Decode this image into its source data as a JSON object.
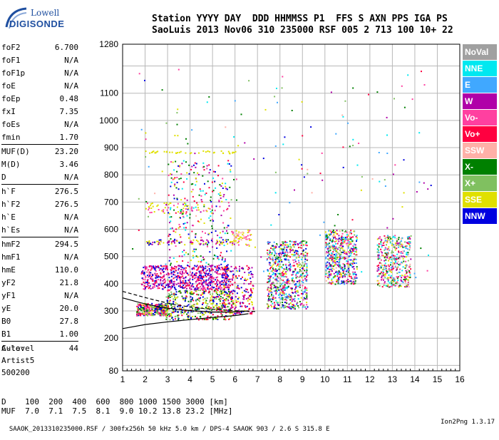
{
  "logo": {
    "line1": "Lowell",
    "line2": "DIGISONDE"
  },
  "header": {
    "labels": "Station YYYY DAY  DDD HHMMSS P1  FFS S AXN PPS IGA PS",
    "values": "SaoLuis 2013 Nov06 310 235000 RSF 005 2 713 100 10+ 22"
  },
  "params": [
    {
      "k": "foF2",
      "v": "6.700"
    },
    {
      "k": "foF1",
      "v": "N/A"
    },
    {
      "k": "foF1p",
      "v": "N/A"
    },
    {
      "k": "foE",
      "v": "N/A"
    },
    {
      "k": "foEp",
      "v": "0.48"
    },
    {
      "k": "fxI",
      "v": "7.35"
    },
    {
      "k": "foEs",
      "v": "N/A"
    },
    {
      "k": "fmin",
      "v": "1.70"
    },
    {
      "k": "MUF(D)",
      "v": "23.20"
    },
    {
      "k": "M(D)",
      "v": "3.46"
    },
    {
      "k": "D",
      "v": "N/A"
    },
    {
      "k": "h`F",
      "v": "276.5"
    },
    {
      "k": "h`F2",
      "v": "276.5"
    },
    {
      "k": "h`E",
      "v": "N/A"
    },
    {
      "k": "h`Es",
      "v": "N/A"
    },
    {
      "k": "hmF2",
      "v": "294.5"
    },
    {
      "k": "hmF1",
      "v": "N/A"
    },
    {
      "k": "hmE",
      "v": "110.0"
    },
    {
      "k": "yF2",
      "v": "21.8"
    },
    {
      "k": "yF1",
      "v": "N/A"
    },
    {
      "k": "yE",
      "v": "20.0"
    },
    {
      "k": "B0",
      "v": "27.8"
    },
    {
      "k": "B1",
      "v": "1.00"
    },
    {
      "k": "C-level",
      "v": "44"
    }
  ],
  "auto": {
    "l1": "Auto:",
    "l2": "Artist5",
    "l3": "500200"
  },
  "dtable": {
    "row1": "D    100  200  400  600  800 1000 1500 3000 [km]",
    "row2": "MUF  7.0  7.1  7.5  8.1  9.0 10.2 13.8 23.2 [MHz]"
  },
  "footer": {
    "left": "SAAOK_2013310235000.RSF / 300fx256h 50 kHz 5.0 km / DPS-4 SAAOK 903 / 2.6 S 315.8 E",
    "version": "Ion2Png 1.3.17"
  },
  "legend": [
    {
      "name": "NoVal",
      "color": "#a0a0a0"
    },
    {
      "name": "NNE",
      "color": "#00e8f0"
    },
    {
      "name": "E",
      "color": "#40a8ff"
    },
    {
      "name": "W",
      "color": "#b000a8"
    },
    {
      "name": "Vo-",
      "color": "#ff40a0"
    },
    {
      "name": "Vo+",
      "color": "#ff0040"
    },
    {
      "name": "SSW",
      "color": "#ffb0a8"
    },
    {
      "name": "X-",
      "color": "#008000"
    },
    {
      "name": "X+",
      "color": "#80c060"
    },
    {
      "name": "SSE",
      "color": "#e0e000"
    },
    {
      "name": "NNW",
      "color": "#0000e0"
    }
  ],
  "chart_data": {
    "type": "scatter",
    "xlim": [
      1,
      16
    ],
    "ylim": [
      80,
      1280
    ],
    "x_ticks": [
      "1",
      "2",
      "3",
      "4",
      "5",
      "6",
      "7",
      "8",
      "9",
      "10",
      "11",
      "12",
      "13",
      "14",
      "15",
      "16"
    ],
    "y_ticks": [
      "1280",
      "1100",
      "1000",
      "900",
      "800",
      "700",
      "600",
      "500",
      "400",
      "300",
      "200",
      "80"
    ],
    "y_tick_values": [
      1280,
      1100,
      1000,
      900,
      800,
      700,
      600,
      500,
      400,
      300,
      200,
      80
    ],
    "grid": true,
    "legend_position": "right",
    "clusters": [
      {
        "x": [
          1.6,
          3.0
        ],
        "y": [
          285,
          330
        ],
        "colors": [
          4,
          5,
          7,
          8,
          9,
          10
        ],
        "n": 320
      },
      {
        "x": [
          2.9,
          5.9
        ],
        "y": [
          270,
          380
        ],
        "colors": [
          7,
          8,
          9,
          5,
          10
        ],
        "n": 420
      },
      {
        "x": [
          1.8,
          5.7
        ],
        "y": [
          380,
          470
        ],
        "colors": [
          3,
          4,
          5,
          10
        ],
        "n": 650
      },
      {
        "x": [
          3.0,
          5.8
        ],
        "y": [
          470,
          860
        ],
        "colors": [
          3,
          4,
          5,
          7,
          9,
          10,
          1
        ],
        "n": 300
      },
      {
        "x": [
          2.0,
          6.0
        ],
        "y": [
          545,
          565
        ],
        "colors": [
          9,
          10,
          3
        ],
        "n": 90
      },
      {
        "x": [
          2.0,
          6.0
        ],
        "y": [
          880,
          890
        ],
        "colors": [
          9
        ],
        "n": 40
      },
      {
        "x": [
          2.0,
          5.0
        ],
        "y": [
          660,
          700
        ],
        "colors": [
          9,
          4
        ],
        "n": 60
      },
      {
        "x": [
          5.4,
          6.8
        ],
        "y": [
          290,
          470
        ],
        "colors": [
          5,
          9,
          10,
          3
        ],
        "n": 220
      },
      {
        "x": [
          5.8,
          6.7
        ],
        "y": [
          540,
          600
        ],
        "colors": [
          6,
          4,
          9
        ],
        "n": 60
      },
      {
        "x": [
          7.4,
          9.2
        ],
        "y": [
          310,
          560
        ],
        "colors": [
          1,
          2,
          3,
          4,
          5,
          7,
          8,
          9,
          10
        ],
        "n": 700
      },
      {
        "x": [
          10.0,
          11.4
        ],
        "y": [
          400,
          600
        ],
        "colors": [
          1,
          2,
          3,
          4,
          5,
          6,
          7,
          8,
          9,
          10
        ],
        "n": 520
      },
      {
        "x": [
          12.3,
          13.8
        ],
        "y": [
          390,
          580
        ],
        "colors": [
          1,
          2,
          3,
          4,
          5,
          6,
          7,
          8,
          9
        ],
        "n": 420
      }
    ],
    "trace_o": [
      [
        1.0,
        348
      ],
      [
        1.8,
        330
      ],
      [
        2.6,
        315
      ],
      [
        3.4,
        306
      ],
      [
        4.2,
        300
      ],
      [
        5.0,
        296
      ],
      [
        5.8,
        296
      ],
      [
        6.3,
        298
      ],
      [
        6.6,
        300
      ]
    ],
    "trace_x": [
      [
        1.0,
        372
      ],
      [
        2.2,
        345
      ],
      [
        3.2,
        325
      ],
      [
        4.2,
        312
      ],
      [
        5.2,
        305
      ],
      [
        6.2,
        300
      ],
      [
        6.9,
        298
      ]
    ],
    "trace_low": [
      [
        1.0,
        235
      ],
      [
        2.0,
        250
      ],
      [
        3.0,
        260
      ],
      [
        4.0,
        268
      ],
      [
        5.0,
        276
      ],
      [
        6.0,
        283
      ],
      [
        6.6,
        290
      ]
    ]
  }
}
